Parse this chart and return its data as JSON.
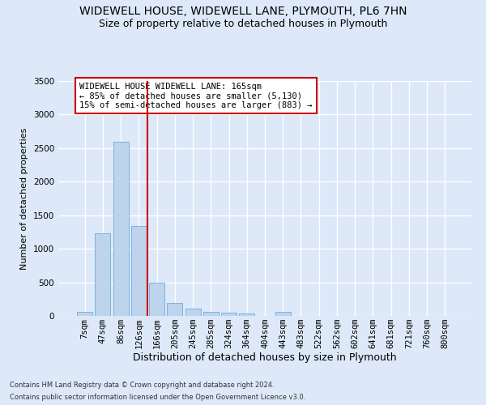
{
  "title": "WIDEWELL HOUSE, WIDEWELL LANE, PLYMOUTH, PL6 7HN",
  "subtitle": "Size of property relative to detached houses in Plymouth",
  "xlabel": "Distribution of detached houses by size in Plymouth",
  "ylabel": "Number of detached properties",
  "footer1": "Contains HM Land Registry data © Crown copyright and database right 2024.",
  "footer2": "Contains public sector information licensed under the Open Government Licence v3.0.",
  "categories": [
    "7sqm",
    "47sqm",
    "86sqm",
    "126sqm",
    "166sqm",
    "205sqm",
    "245sqm",
    "285sqm",
    "324sqm",
    "364sqm",
    "404sqm",
    "443sqm",
    "483sqm",
    "522sqm",
    "562sqm",
    "602sqm",
    "641sqm",
    "681sqm",
    "721sqm",
    "760sqm",
    "800sqm"
  ],
  "values": [
    55,
    1230,
    2590,
    1340,
    500,
    195,
    105,
    55,
    45,
    40,
    0,
    55,
    0,
    0,
    0,
    0,
    0,
    0,
    0,
    0,
    0
  ],
  "bar_color": "#bed3ec",
  "bar_edge_color": "#6aaee0",
  "vline_x_index": 4,
  "vline_color": "#cc0000",
  "annotation_text": "WIDEWELL HOUSE WIDEWELL LANE: 165sqm\n← 85% of detached houses are smaller (5,130)\n15% of semi-detached houses are larger (883) →",
  "annotation_box_color": "white",
  "annotation_box_edge": "#cc0000",
  "ylim": [
    0,
    3500
  ],
  "yticks": [
    0,
    500,
    1000,
    1500,
    2000,
    2500,
    3000,
    3500
  ],
  "background_color": "#dde8f8",
  "grid_color": "white",
  "title_fontsize": 10,
  "subtitle_fontsize": 9,
  "ylabel_fontsize": 8,
  "xlabel_fontsize": 9,
  "tick_fontsize": 7.5,
  "footer_fontsize": 6,
  "annotation_fontsize": 7.5
}
